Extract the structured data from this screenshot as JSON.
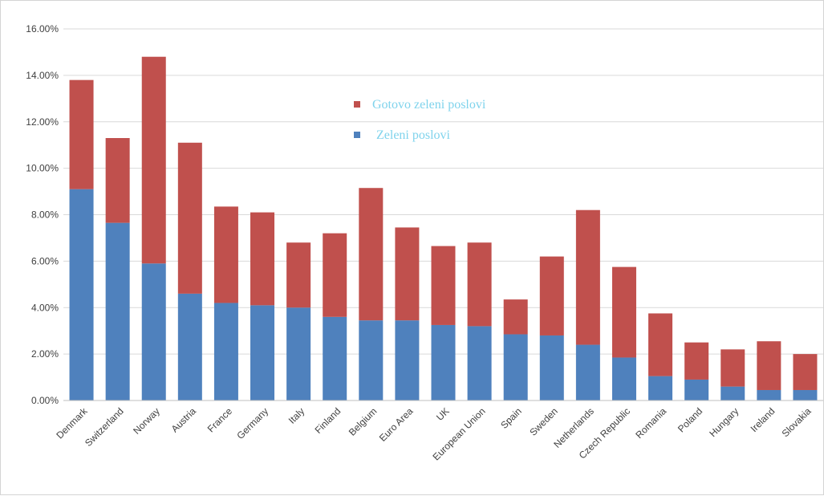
{
  "chart_data": {
    "type": "bar",
    "stacked": true,
    "categories": [
      "Denmark",
      "Switzerland",
      "Norway",
      "Austria",
      "France",
      "Germany",
      "Italy",
      "Finland",
      "Belgium",
      "Euro Area",
      "UK",
      "European Union",
      "Spain",
      "Sweden",
      "Netherlands",
      "Czech Republic",
      "Romania",
      "Poland",
      "Hungary",
      "Ireland",
      "Slovakia"
    ],
    "series": [
      {
        "name": "Zeleni poslovi",
        "color": "#4F81BD",
        "values": [
          9.1,
          7.65,
          5.9,
          4.6,
          4.2,
          4.1,
          4.0,
          3.6,
          3.45,
          3.45,
          3.25,
          3.2,
          2.85,
          2.8,
          2.4,
          1.85,
          1.05,
          0.9,
          0.6,
          0.45,
          0.45
        ]
      },
      {
        "name": "Gotovo zeleni poslovi",
        "color": "#C0504D",
        "values": [
          4.7,
          3.65,
          8.9,
          6.5,
          4.15,
          4.0,
          2.8,
          3.6,
          5.7,
          4.0,
          3.4,
          3.6,
          1.5,
          3.4,
          5.8,
          3.9,
          2.7,
          1.6,
          1.6,
          2.1,
          1.55
        ]
      }
    ],
    "ylim": [
      0,
      16
    ],
    "yticks": [
      0,
      2,
      4,
      6,
      8,
      10,
      12,
      14,
      16
    ],
    "ytick_labels": [
      "0.00%",
      "2.00%",
      "4.00%",
      "6.00%",
      "8.00%",
      "10.00%",
      "12.00%",
      "14.00%",
      "16.00%"
    ],
    "grid": true,
    "legend_position": "top-center"
  },
  "legend": {
    "text_color": "#7FD3EC",
    "items": [
      {
        "label": "Gotovo zeleni poslovi",
        "color": "#C0504D"
      },
      {
        "label": "Zeleni poslovi",
        "color": "#4F81BD"
      }
    ]
  }
}
